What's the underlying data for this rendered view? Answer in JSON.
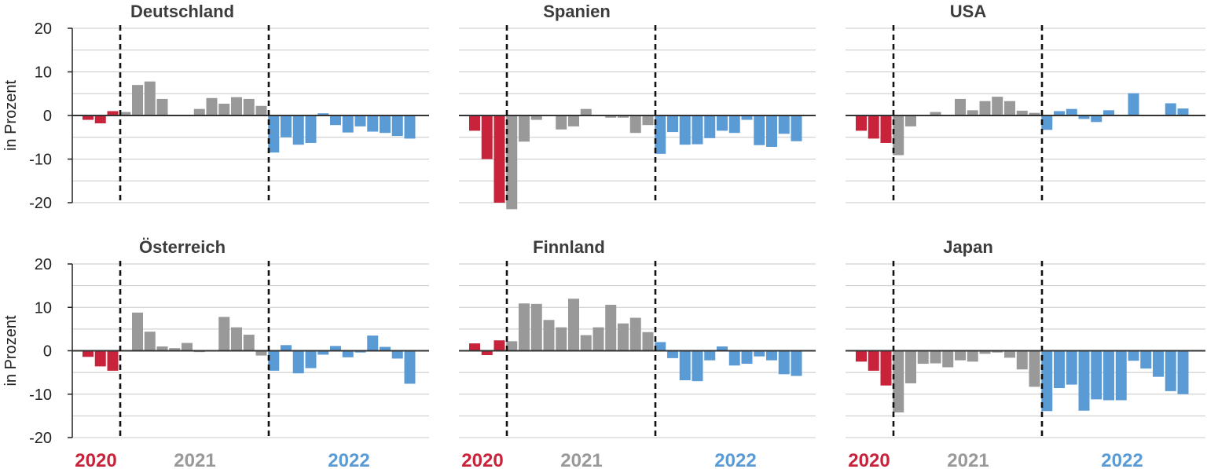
{
  "chart_data": [
    {
      "type": "bar",
      "title": "Deutschland",
      "ylabel": "in Prozent",
      "ylim": [
        -20,
        20
      ],
      "yticks": [
        "20",
        "10",
        "0",
        "-10",
        "-20"
      ],
      "years": [
        "2020",
        "2021",
        "2022"
      ],
      "values_2020": [
        -1,
        -1.8,
        1
      ],
      "values_2021": [
        0.8,
        7,
        7.8,
        3.8,
        0,
        0,
        1.5,
        4,
        2.7,
        4.2,
        3.8,
        2.2
      ],
      "values_2022": [
        -8.5,
        -5,
        -6.7,
        -6.3,
        0.5,
        -2.2,
        -3.9,
        -2.5,
        -3.7,
        -4,
        -4.7,
        -5.3
      ]
    },
    {
      "type": "bar",
      "title": "Spanien",
      "ylabel": "",
      "ylim": [
        -20,
        20
      ],
      "yticks": [
        "",
        "",
        "",
        "",
        ""
      ],
      "years": [
        "2020",
        "2021",
        "2022"
      ],
      "values_2020": [
        -3.5,
        -10,
        -20
      ],
      "values_2021": [
        -21.5,
        -6,
        -1,
        0,
        -3.2,
        -2.5,
        1.5,
        0,
        -0.5,
        -0.5,
        -4,
        -2.2
      ],
      "values_2022": [
        -8.8,
        -3.8,
        -6.7,
        -6.6,
        -5.2,
        -3.5,
        -4,
        -1,
        -6.8,
        -7.2,
        -4.2,
        -5.9
      ]
    },
    {
      "type": "bar",
      "title": "USA",
      "ylabel": "",
      "ylim": [
        -20,
        20
      ],
      "yticks": [
        "",
        "",
        "",
        "",
        ""
      ],
      "years": [
        "2020",
        "2021",
        "2022"
      ],
      "values_2020": [
        -3.5,
        -5.3,
        -6.3
      ],
      "values_2021": [
        -9.1,
        -2.5,
        0,
        0.8,
        0,
        3.8,
        1.2,
        3.3,
        4.3,
        3.3,
        1.1,
        0.6
      ],
      "values_2022": [
        -3.3,
        1,
        1.5,
        -0.8,
        -1.5,
        1.2,
        0,
        5.1,
        0,
        0,
        2.8,
        1.6
      ]
    },
    {
      "type": "bar",
      "title": "Österreich",
      "ylabel": "in Prozent",
      "ylim": [
        -20,
        20
      ],
      "yticks": [
        "20",
        "10",
        "0",
        "-10",
        "-20"
      ],
      "years": [
        "2020",
        "2021",
        "2022"
      ],
      "values_2020": [
        -1.4,
        -3.6,
        -4.6
      ],
      "values_2021": [
        0,
        8.8,
        4.4,
        1,
        0.6,
        1.8,
        -0.3,
        0,
        7.8,
        5.4,
        3.7,
        -1.1
      ],
      "values_2022": [
        -4.6,
        1.3,
        -5.2,
        -4,
        -0.9,
        1.1,
        -1.5,
        -0.4,
        3.5,
        0.9,
        -1.8,
        -7.6
      ]
    },
    {
      "type": "bar",
      "title": "Finnland",
      "ylabel": "",
      "ylim": [
        -20,
        20
      ],
      "yticks": [
        "",
        "",
        "",
        "",
        ""
      ],
      "years": [
        "2020",
        "2021",
        "2022"
      ],
      "values_2020": [
        1.7,
        -1,
        2.4
      ],
      "values_2021": [
        2.2,
        10.9,
        10.8,
        7.1,
        5.4,
        12,
        3.6,
        5.4,
        10.6,
        6.3,
        7.6,
        4.3
      ],
      "values_2022": [
        2,
        -1.7,
        -6.8,
        -7,
        -2.2,
        1,
        -3.4,
        -3,
        -1.3,
        -2.2,
        -5.4,
        -5.8
      ]
    },
    {
      "type": "bar",
      "title": "Japan",
      "ylabel": "",
      "ylim": [
        -20,
        20
      ],
      "yticks": [
        "",
        "",
        "",
        "",
        ""
      ],
      "years": [
        "2020",
        "2021",
        "2022"
      ],
      "values_2020": [
        -2.5,
        -4.6,
        -8
      ],
      "values_2021": [
        -14.2,
        -7.5,
        -3,
        -2.9,
        -3.8,
        -2.2,
        -2.5,
        -0.7,
        -0.4,
        -1.6,
        -4.3,
        -8.3
      ],
      "values_2022": [
        -13.9,
        -8.6,
        -7.8,
        -13.8,
        -11.2,
        -11.4,
        -11.4,
        -2.3,
        -4.1,
        -6,
        -9.3,
        -10
      ]
    }
  ],
  "colors": {
    "y2020": "#c8233a",
    "y2021": "#999999",
    "y2022": "#5b9bd5"
  }
}
